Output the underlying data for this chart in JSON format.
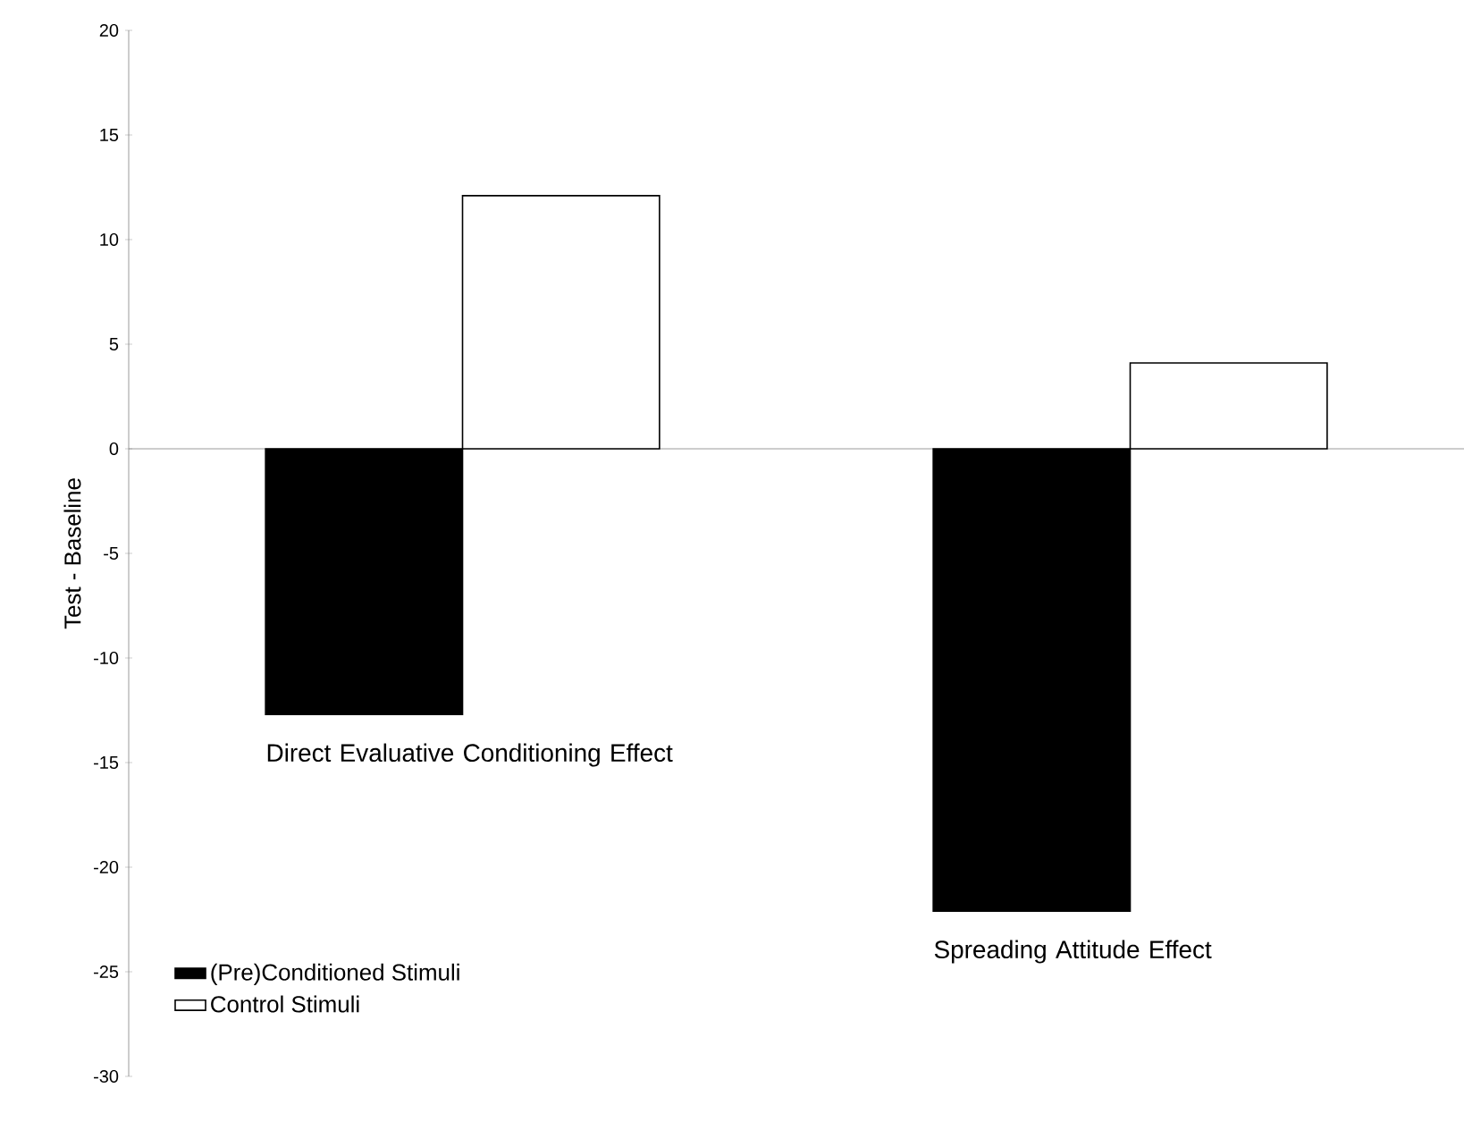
{
  "chart_data": {
    "type": "bar",
    "ylabel": "Test - Baseline",
    "categories": [
      "Direct Evaluative Conditioning Effect",
      "Spreading Attitude Effect"
    ],
    "series": [
      {
        "name": "(Pre)Conditioned Stimuli",
        "color": "#000000",
        "values": [
          -12.7,
          -22.1
        ]
      },
      {
        "name": "Control Stimuli",
        "color": "#ffffff",
        "values": [
          12.1,
          4.1
        ]
      }
    ],
    "ylim": [
      -30,
      20
    ],
    "yticks": [
      -30,
      -25,
      -20,
      -15,
      -10,
      -5,
      0,
      5,
      10,
      15,
      20
    ],
    "legend": "bottom left"
  }
}
